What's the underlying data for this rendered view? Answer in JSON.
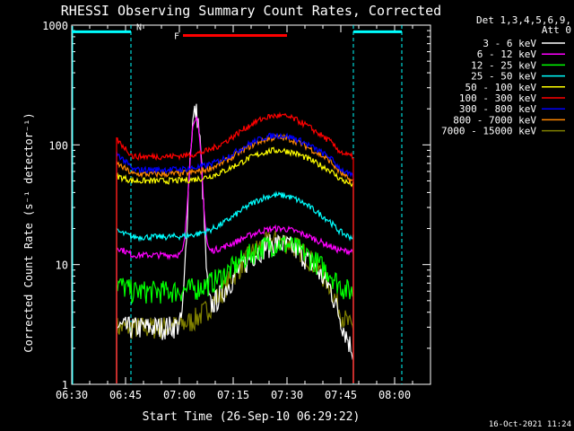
{
  "chart_data": {
    "type": "line",
    "title": "RHESSI Observing Summary Count Rates, Corrected",
    "xlabel": "Start Time (26-Sep-10 06:29:22)",
    "ylabel": "Corrected Count Rate (s⁻¹ detector⁻¹)",
    "yscale": "log",
    "ylim": [
      1,
      1000
    ],
    "xlim_minutes": [
      0,
      100
    ],
    "x_ticks": [
      {
        "label": "06:30",
        "min": 0
      },
      {
        "label": "06:45",
        "min": 15
      },
      {
        "label": "07:00",
        "min": 30
      },
      {
        "label": "07:15",
        "min": 45
      },
      {
        "label": "07:30",
        "min": 60
      },
      {
        "label": "07:45",
        "min": 75
      },
      {
        "label": "08:00",
        "min": 90
      }
    ],
    "y_ticks": [
      {
        "label": "1",
        "value": 1
      },
      {
        "label": "10",
        "value": 10
      },
      {
        "label": "100",
        "value": 100
      },
      {
        "label": "1000",
        "value": 1000
      }
    ],
    "legend_header": [
      "Det 1,3,4,5,6,9,",
      "Att 0"
    ],
    "legend_position": "right",
    "annotations": {
      "night": {
        "label": "N",
        "color": "#00ffff",
        "level": 880,
        "segments": [
          [
            0,
            16.5
          ],
          [
            78.5,
            92
          ]
        ]
      },
      "flare": {
        "label": "F",
        "color": "#ff0000",
        "level": 820,
        "segments": [
          [
            31,
            60
          ]
        ]
      },
      "saa_lines": [
        16.5,
        78.5,
        92
      ],
      "data_window": [
        12.5,
        78.5
      ]
    },
    "series": [
      {
        "name": "3 - 6 keV",
        "color": "#ffffff",
        "pre": 3,
        "base": 3,
        "peak": 15,
        "flare": 190,
        "tail": 2
      },
      {
        "name": "6 - 12 keV",
        "color": "#ff00ff",
        "pre": 14,
        "base": 12,
        "peak": 20,
        "flare": 170,
        "tail": 13
      },
      {
        "name": "12 - 25 keV",
        "color": "#00ff00",
        "pre": 7,
        "base": 6,
        "peak": 15,
        "flare": 6,
        "tail": 6
      },
      {
        "name": "25 - 50 keV",
        "color": "#00ffff",
        "pre": 19,
        "base": 17,
        "peak": 38,
        "flare": 17,
        "tail": 17
      },
      {
        "name": "50 - 100 keV",
        "color": "#ffff00",
        "pre": 55,
        "base": 50,
        "peak": 90,
        "flare": 50,
        "tail": 47
      },
      {
        "name": "100 - 300 keV",
        "color": "#ff0000",
        "pre": 110,
        "base": 80,
        "peak": 175,
        "flare": 80,
        "tail": 80
      },
      {
        "name": "300 - 800 keV",
        "color": "#0000ff",
        "pre": 85,
        "base": 62,
        "peak": 120,
        "flare": 62,
        "tail": 55
      },
      {
        "name": "800 - 7000 keV",
        "color": "#ff8800",
        "pre": 70,
        "base": 57,
        "peak": 115,
        "flare": 57,
        "tail": 50
      },
      {
        "name": "7000 - 15000 keV",
        "color": "#808000",
        "pre": 3,
        "base": 3,
        "peak": 16,
        "flare": 3,
        "tail": 3
      }
    ],
    "series_shape": {
      "start": 12.5,
      "end": 78.5,
      "peak_center": 57.5,
      "peak_width": 13,
      "flare_center": 34.5,
      "flare_width": 1.6
    },
    "footer_date": "16-Oct-2021 11:24"
  }
}
